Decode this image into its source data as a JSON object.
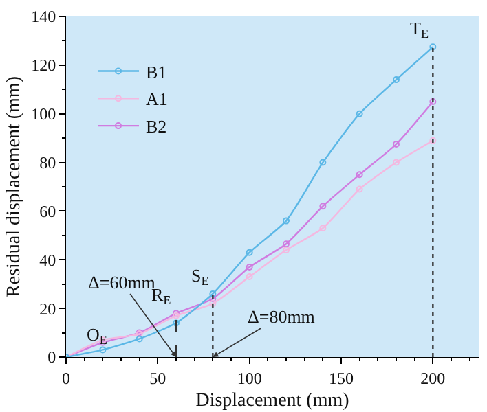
{
  "chart_data": {
    "type": "line",
    "xlabel": "Displacement (mm)",
    "ylabel": "Residual displacement (mm)",
    "x": [
      0,
      20,
      40,
      60,
      80,
      100,
      120,
      140,
      160,
      180,
      200
    ],
    "series": [
      {
        "name": "B1",
        "color": "#5bb7e6",
        "values": [
          0,
          3,
          7.5,
          14,
          26,
          43,
          56,
          80,
          100,
          114,
          127.5
        ]
      },
      {
        "name": "A1",
        "color": "#f4b8e0",
        "values": [
          0,
          7,
          9.5,
          17,
          22,
          33,
          44,
          53,
          69,
          80,
          89
        ]
      },
      {
        "name": "B2",
        "color": "#d07ce0",
        "values": [
          0,
          6,
          10,
          18,
          24,
          37,
          46.5,
          62,
          75,
          87.5,
          105
        ]
      }
    ],
    "xlim": [
      0,
      225
    ],
    "xticks": [
      0,
      50,
      100,
      150,
      200
    ],
    "ylim": [
      0,
      140
    ],
    "yticks": [
      0,
      20,
      40,
      60,
      80,
      100,
      120,
      140
    ],
    "ref_lines": [
      {
        "axis": "x",
        "value": 60,
        "label": "R$_{E}$",
        "color": "#333333",
        "line_style": "dashed"
      },
      {
        "axis": "x",
        "value": 80,
        "label": "S$_{E}$",
        "color": "#333333",
        "line_style": "dotted"
      },
      {
        "axis": "x",
        "value": 200,
        "label": "T$_{E}$",
        "color": "#333333",
        "line_style": "dotted"
      }
    ],
    "annotations": [
      {
        "text": "O$_{E}$",
        "x": 0,
        "y": 0
      },
      {
        "text": "Δ=60mm",
        "x": 60,
        "y": 0
      },
      {
        "text": "Δ=80mm",
        "x": 80,
        "y": 0
      }
    ],
    "legend": "top left",
    "marker": "circle",
    "line_style": "solid",
    "grid": false
  }
}
